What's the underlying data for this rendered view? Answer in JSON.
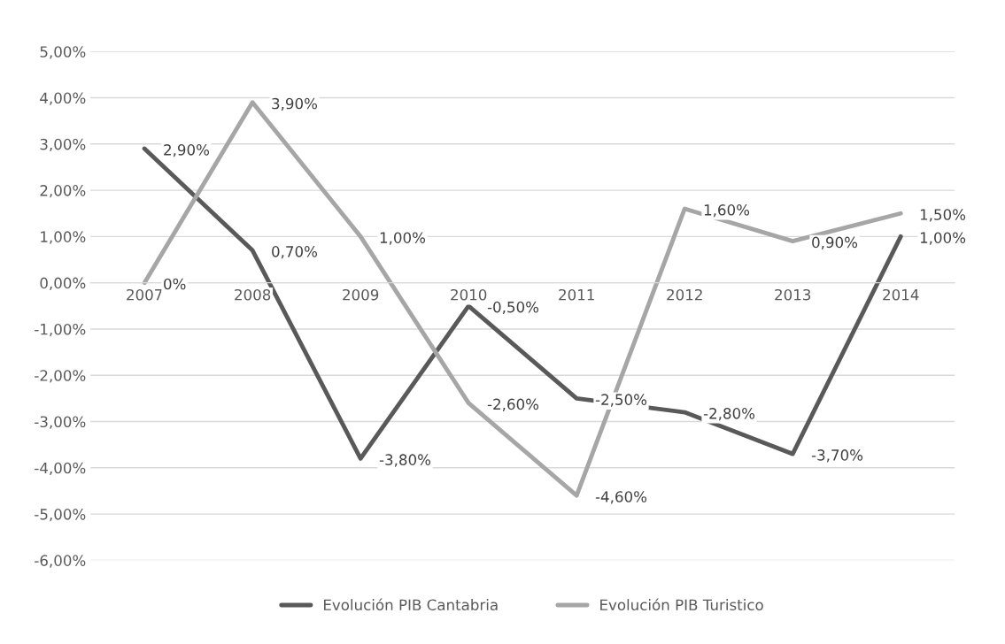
{
  "chart_data": {
    "type": "line",
    "categories": [
      "2007",
      "2008",
      "2009",
      "2010",
      "2011",
      "2012",
      "2013",
      "2014"
    ],
    "series": [
      {
        "name": "Evolución PIB Cantabria",
        "color": "#595959",
        "values": [
          2.9,
          0.7,
          -3.8,
          -0.5,
          -2.5,
          -2.8,
          -3.7,
          1.0
        ],
        "value_labels": [
          "2,90%",
          "0,70%",
          "-3,80%",
          "-0,50%",
          "-2,50%",
          "-2,80%",
          "-3,70%",
          "1,00%"
        ]
      },
      {
        "name": "Evolución PIB Turistico",
        "color": "#a6a6a6",
        "values": [
          0,
          3.9,
          1.0,
          -2.6,
          -4.6,
          1.6,
          0.9,
          1.5
        ],
        "value_labels": [
          "0%",
          "3,90%",
          "1,00%",
          "-2,60%",
          "-4,60%",
          "1,60%",
          "0,90%",
          "1,50%"
        ]
      }
    ],
    "ylim": [
      -6,
      5
    ],
    "yticks": [
      {
        "value": -6,
        "label": "-6,00%"
      },
      {
        "value": -5,
        "label": "-5,00%"
      },
      {
        "value": -4,
        "label": "-4,00%"
      },
      {
        "value": -3,
        "label": "-3,00%"
      },
      {
        "value": -2,
        "label": "-2,00%"
      },
      {
        "value": -1,
        "label": "-1,00%"
      },
      {
        "value": 0,
        "label": "0,00%"
      },
      {
        "value": 1,
        "label": "1,00%"
      },
      {
        "value": 2,
        "label": "2,00%"
      },
      {
        "value": 3,
        "label": "3,00%"
      },
      {
        "value": 4,
        "label": "4,00%"
      },
      {
        "value": 5,
        "label": "5,00%"
      }
    ],
    "grid": "y",
    "legend": "bottom",
    "marker": "none",
    "line_style": "solid"
  }
}
